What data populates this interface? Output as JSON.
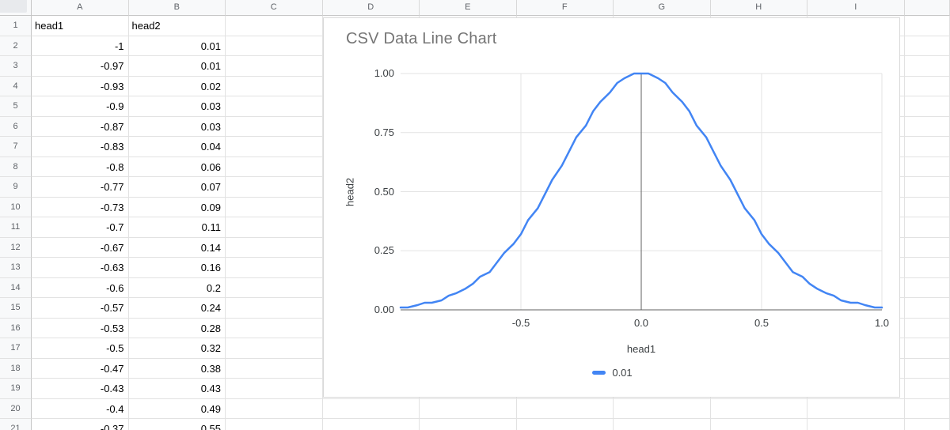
{
  "app": {
    "name": "spreadsheet"
  },
  "sheet": {
    "columns": [
      "A",
      "B",
      "C",
      "D",
      "E",
      "F",
      "G",
      "H",
      "I"
    ],
    "rows": [
      {
        "n": "1",
        "cells": [
          "head1",
          "head2"
        ]
      },
      {
        "n": "2",
        "cells": [
          "-1",
          "0.01"
        ]
      },
      {
        "n": "3",
        "cells": [
          "-0.97",
          "0.01"
        ]
      },
      {
        "n": "4",
        "cells": [
          "-0.93",
          "0.02"
        ]
      },
      {
        "n": "5",
        "cells": [
          "-0.9",
          "0.03"
        ]
      },
      {
        "n": "6",
        "cells": [
          "-0.87",
          "0.03"
        ]
      },
      {
        "n": "7",
        "cells": [
          "-0.83",
          "0.04"
        ]
      },
      {
        "n": "8",
        "cells": [
          "-0.8",
          "0.06"
        ]
      },
      {
        "n": "9",
        "cells": [
          "-0.77",
          "0.07"
        ]
      },
      {
        "n": "10",
        "cells": [
          "-0.73",
          "0.09"
        ]
      },
      {
        "n": "11",
        "cells": [
          "-0.7",
          "0.11"
        ]
      },
      {
        "n": "12",
        "cells": [
          "-0.67",
          "0.14"
        ]
      },
      {
        "n": "13",
        "cells": [
          "-0.63",
          "0.16"
        ]
      },
      {
        "n": "14",
        "cells": [
          "-0.6",
          "0.2"
        ]
      },
      {
        "n": "15",
        "cells": [
          "-0.57",
          "0.24"
        ]
      },
      {
        "n": "16",
        "cells": [
          "-0.53",
          "0.28"
        ]
      },
      {
        "n": "17",
        "cells": [
          "-0.5",
          "0.32"
        ]
      },
      {
        "n": "18",
        "cells": [
          "-0.47",
          "0.38"
        ]
      },
      {
        "n": "19",
        "cells": [
          "-0.43",
          "0.43"
        ]
      },
      {
        "n": "20",
        "cells": [
          "-0.4",
          "0.49"
        ]
      },
      {
        "n": "21",
        "cells": [
          "-0.37",
          "0.55"
        ]
      }
    ]
  },
  "chart": {
    "title": "CSV Data Line Chart"
  },
  "chart_data": {
    "type": "line",
    "title": "CSV Data Line Chart",
    "xlabel": "head1",
    "ylabel": "head2",
    "xlim": [
      -1,
      1
    ],
    "ylim": [
      0,
      1
    ],
    "x_ticks": [
      "-0.5",
      "0.0",
      "0.5",
      "1.0"
    ],
    "y_ticks": [
      "0.00",
      "0.25",
      "0.50",
      "0.75",
      "1.00"
    ],
    "grid": true,
    "legend_position": "bottom",
    "series": [
      {
        "name": "0.01",
        "color": "#4285f4",
        "x": [
          -1,
          -0.97,
          -0.93,
          -0.9,
          -0.87,
          -0.83,
          -0.8,
          -0.77,
          -0.73,
          -0.7,
          -0.67,
          -0.63,
          -0.6,
          -0.57,
          -0.53,
          -0.5,
          -0.47,
          -0.43,
          -0.4,
          -0.37,
          -0.33,
          -0.3,
          -0.27,
          -0.23,
          -0.2,
          -0.17,
          -0.13,
          -0.1,
          -0.07,
          -0.03,
          0,
          0.03,
          0.07,
          0.1,
          0.13,
          0.17,
          0.2,
          0.23,
          0.27,
          0.3,
          0.33,
          0.37,
          0.4,
          0.43,
          0.47,
          0.5,
          0.53,
          0.57,
          0.6,
          0.63,
          0.67,
          0.7,
          0.73,
          0.77,
          0.8,
          0.83,
          0.87,
          0.9,
          0.93,
          0.97,
          1
        ],
        "y": [
          0.01,
          0.01,
          0.02,
          0.03,
          0.03,
          0.04,
          0.06,
          0.07,
          0.09,
          0.11,
          0.14,
          0.16,
          0.2,
          0.24,
          0.28,
          0.32,
          0.38,
          0.43,
          0.49,
          0.55,
          0.61,
          0.67,
          0.73,
          0.78,
          0.84,
          0.88,
          0.92,
          0.96,
          0.98,
          1,
          1,
          1,
          0.98,
          0.96,
          0.92,
          0.88,
          0.84,
          0.78,
          0.73,
          0.67,
          0.61,
          0.55,
          0.49,
          0.43,
          0.38,
          0.32,
          0.28,
          0.24,
          0.2,
          0.16,
          0.14,
          0.11,
          0.09,
          0.07,
          0.06,
          0.04,
          0.03,
          0.03,
          0.02,
          0.01,
          0.01
        ]
      }
    ],
    "colors": {
      "gridline": "#e3e3e3",
      "baseline": "#616161"
    }
  }
}
